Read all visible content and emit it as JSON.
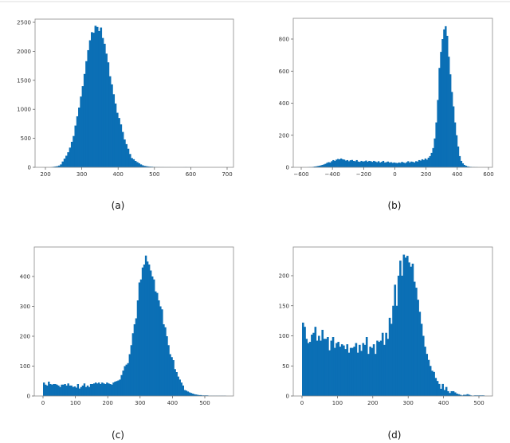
{
  "bar_color": "#0b6fb5",
  "chart_data": [
    {
      "type": "bar",
      "caption": "(a)",
      "bin_start": 215,
      "bin_width": 5,
      "values": [
        5,
        10,
        15,
        20,
        30,
        50,
        100,
        150,
        200,
        260,
        340,
        440,
        540,
        720,
        880,
        1030,
        1220,
        1400,
        1610,
        1830,
        2020,
        2190,
        2330,
        2320,
        2440,
        2420,
        2350,
        2410,
        2230,
        2130,
        1960,
        1810,
        1570,
        1430,
        1260,
        1100,
        940,
        850,
        740,
        610,
        480,
        400,
        320,
        230,
        160,
        140,
        110,
        90,
        70,
        50,
        35,
        25,
        20,
        15,
        12,
        10,
        8,
        6,
        5,
        4,
        3,
        3,
        2,
        2,
        2,
        2,
        1,
        1,
        1,
        1,
        1,
        1,
        1,
        2,
        3,
        1,
        2,
        1
      ],
      "x_ticks": [
        200,
        300,
        400,
        500,
        600,
        700
      ],
      "x_tick_labels": [
        "200",
        "300",
        "400",
        "500",
        "600",
        "700"
      ],
      "y_ticks": [
        0,
        500,
        1000,
        1500,
        2000,
        2500
      ],
      "y_tick_labels": [
        "0",
        "500",
        "1000",
        "1500",
        "2000",
        "2500"
      ],
      "xlim": [
        180,
        720
      ],
      "ylim": [
        0,
        2560
      ]
    },
    {
      "type": "bar",
      "caption": "(b)",
      "bin_start": -560,
      "bin_width": 10,
      "values": [
        1,
        2,
        2,
        3,
        5,
        6,
        8,
        10,
        12,
        15,
        18,
        22,
        28,
        32,
        30,
        38,
        45,
        40,
        48,
        52,
        50,
        55,
        50,
        48,
        42,
        45,
        38,
        44,
        46,
        40,
        38,
        45,
        36,
        34,
        40,
        36,
        38,
        42,
        35,
        40,
        38,
        34,
        40,
        36,
        32,
        38,
        30,
        34,
        40,
        30,
        32,
        36,
        30,
        32,
        28,
        30,
        28,
        26,
        30,
        28,
        34,
        30,
        26,
        32,
        38,
        30,
        36,
        34,
        30,
        38,
        36,
        45,
        42,
        50,
        46,
        55,
        48,
        60,
        70,
        90,
        120,
        180,
        280,
        420,
        620,
        720,
        800,
        860,
        880,
        820,
        690,
        580,
        470,
        380,
        280,
        200,
        130,
        70,
        40,
        25,
        15,
        10,
        6,
        4,
        3,
        2,
        2,
        1,
        1
      ],
      "x_ticks": [
        -600,
        -400,
        -200,
        0,
        200,
        400,
        600
      ],
      "x_tick_labels": [
        "−600",
        "−400",
        "−200",
        "0",
        "200",
        "400",
        "600"
      ],
      "y_ticks": [
        0,
        200,
        400,
        600,
        800
      ],
      "y_tick_labels": [
        "0",
        "200",
        "400",
        "600",
        "800"
      ],
      "xlim": [
        -620,
        620
      ],
      "ylim": [
        0,
        930
      ]
    },
    {
      "type": "bar",
      "caption": "(c)",
      "bin_start": 0,
      "bin_width": 5,
      "values": [
        45,
        38,
        35,
        48,
        40,
        38,
        40,
        40,
        38,
        35,
        30,
        38,
        38,
        40,
        35,
        42,
        35,
        35,
        30,
        32,
        28,
        40,
        25,
        30,
        35,
        42,
        30,
        35,
        30,
        40,
        40,
        42,
        45,
        42,
        45,
        40,
        45,
        42,
        40,
        45,
        42,
        40,
        38,
        45,
        48,
        50,
        52,
        55,
        70,
        85,
        100,
        105,
        110,
        140,
        170,
        210,
        240,
        260,
        320,
        380,
        390,
        430,
        440,
        470,
        450,
        440,
        420,
        400,
        390,
        350,
        345,
        320,
        300,
        290,
        240,
        230,
        200,
        170,
        140,
        130,
        120,
        90,
        80,
        65,
        55,
        45,
        35,
        20,
        18,
        15,
        12,
        10,
        8,
        6,
        5,
        4,
        3,
        3,
        2,
        2,
        2,
        2,
        1,
        1,
        1,
        1,
        1,
        1,
        1,
        1,
        1,
        1,
        1
      ],
      "x_ticks": [
        0,
        100,
        200,
        300,
        400,
        500
      ],
      "x_tick_labels": [
        "0",
        "100",
        "200",
        "300",
        "400",
        "500"
      ],
      "y_ticks": [
        0,
        100,
        200,
        300,
        400
      ],
      "y_tick_labels": [
        "0",
        "100",
        "200",
        "300",
        "400"
      ],
      "xlim": [
        -30,
        590
      ],
      "ylim": [
        0,
        500
      ]
    },
    {
      "type": "bar",
      "caption": "(d)",
      "bin_start": 0,
      "bin_width": 5,
      "values": [
        122,
        115,
        95,
        88,
        90,
        102,
        105,
        115,
        92,
        100,
        92,
        110,
        95,
        95,
        98,
        76,
        92,
        98,
        80,
        88,
        90,
        82,
        86,
        84,
        78,
        86,
        72,
        80,
        80,
        82,
        88,
        72,
        85,
        75,
        88,
        85,
        98,
        70,
        82,
        80,
        86,
        70,
        92,
        90,
        92,
        105,
        85,
        105,
        95,
        130,
        120,
        150,
        185,
        150,
        200,
        225,
        200,
        235,
        230,
        233,
        222,
        215,
        220,
        190,
        180,
        160,
        140,
        120,
        100,
        82,
        70,
        60,
        50,
        42,
        40,
        30,
        25,
        20,
        12,
        20,
        10,
        15,
        8,
        5,
        8,
        8,
        6,
        4,
        3,
        2,
        1,
        2,
        2,
        3,
        2,
        1,
        0,
        1,
        1,
        1,
        1,
        1,
        1
      ],
      "x_ticks": [
        0,
        100,
        200,
        300,
        400,
        500
      ],
      "x_tick_labels": [
        "0",
        "100",
        "200",
        "300",
        "400",
        "500"
      ],
      "y_ticks": [
        0,
        50,
        100,
        150,
        200
      ],
      "y_tick_labels": [
        "0",
        "50",
        "100",
        "150",
        "200"
      ],
      "xlim": [
        -30,
        560
      ],
      "ylim": [
        0,
        245
      ]
    }
  ]
}
